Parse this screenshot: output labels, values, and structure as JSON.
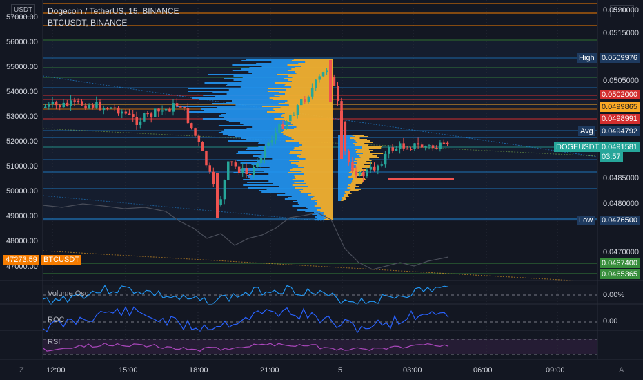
{
  "header": {
    "title": "Dogecoin / TetherUS, 15, BINANCE",
    "compare_symbol": "BTCUSDT, BINANCE",
    "left_unit_button": "USDT",
    "right_unit_button": "USDT"
  },
  "left_axis": {
    "ticks": [
      "57000.00",
      "56000.00",
      "55000.00",
      "54000.00",
      "53000.00",
      "52000.00",
      "51000.00",
      "50000.00",
      "49000.00",
      "48000.00",
      "47000.00"
    ],
    "btc_price_label": "47273.59",
    "btc_symbol_label": "BTCUSDT"
  },
  "right_axis": {
    "ticks": [
      "0.0520000",
      "0.0515000",
      "0.0505000",
      "0.0485000",
      "0.0480000",
      "0.0470000"
    ]
  },
  "price_labels": {
    "high_name": "High",
    "high_value": "0.0509976",
    "level_1": "0.0502000",
    "level_2": "0.0499865",
    "level_3": "0.0498991",
    "avg_name": "Avg",
    "avg_value": "0.0494792",
    "current_name": "DOGEUSDT",
    "current_value": "0.0491581",
    "countdown": "03:57",
    "low_name": "Low",
    "low_value": "0.0476500",
    "level_4": "0.0467400",
    "level_5": "0.0465365"
  },
  "indicators": {
    "vol_osc_name": "Volume Osc",
    "vol_osc_value": "0.00%",
    "roc_name": "ROC",
    "roc_value": "0.00",
    "rsi_name": "RSI"
  },
  "time_axis": [
    "12:00",
    "15:00",
    "18:00",
    "21:00",
    "5",
    "03:00",
    "06:00",
    "09:00"
  ],
  "corner_buttons": {
    "left": "Z",
    "right": "A"
  },
  "colors": {
    "background": "#131722",
    "up_candle": "#26a69a",
    "down_candle": "#ef5350",
    "volume_profile_blue": "#2196f3",
    "volume_profile_gold": "#f0b030",
    "red_label": "#d32f2f",
    "orange_label": "#f57c00",
    "green_label": "#388e3c",
    "gold_label": "#f9a825",
    "teal_label": "#26a69a",
    "navy_label": "#1e3a5f"
  }
}
